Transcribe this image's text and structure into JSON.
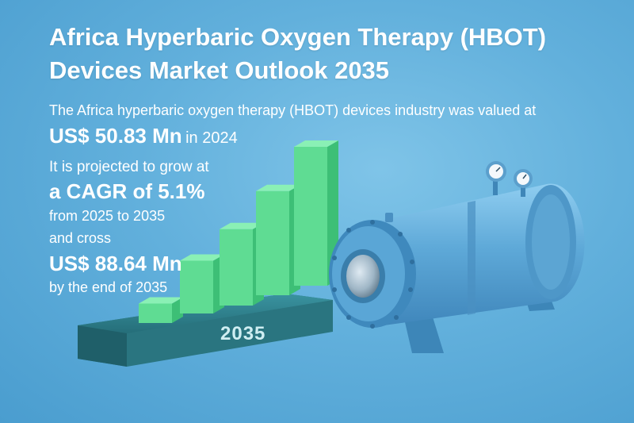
{
  "title": "Africa Hyperbaric Oxygen Therapy (HBOT) Devices Market Outlook 2035",
  "intro": "The Africa hyperbaric oxygen therapy (HBOT) devices industry was valued at",
  "value_2024": "US$ 50.83 Mn",
  "value_2024_suffix": "in 2024",
  "line_grow": "It is projected to grow at",
  "cagr": "a CAGR of 5.1%",
  "period": "from 2025 to 2035",
  "and_cross": "and cross",
  "value_2035": "US$ 88.64 Mn",
  "by_end": "by the end of 2035",
  "platform_year": "2035",
  "bar_levels": [
    0.14,
    0.38,
    0.55,
    0.75,
    1.0
  ],
  "colors": {
    "bar_green": "#5fdc93",
    "bar_green_dark": "#3dbf76",
    "platform": "#2e7f8a",
    "chamber": "#5aa8d6"
  },
  "icons": [
    "pressure-gauge-icon",
    "pressure-gauge-icon"
  ]
}
